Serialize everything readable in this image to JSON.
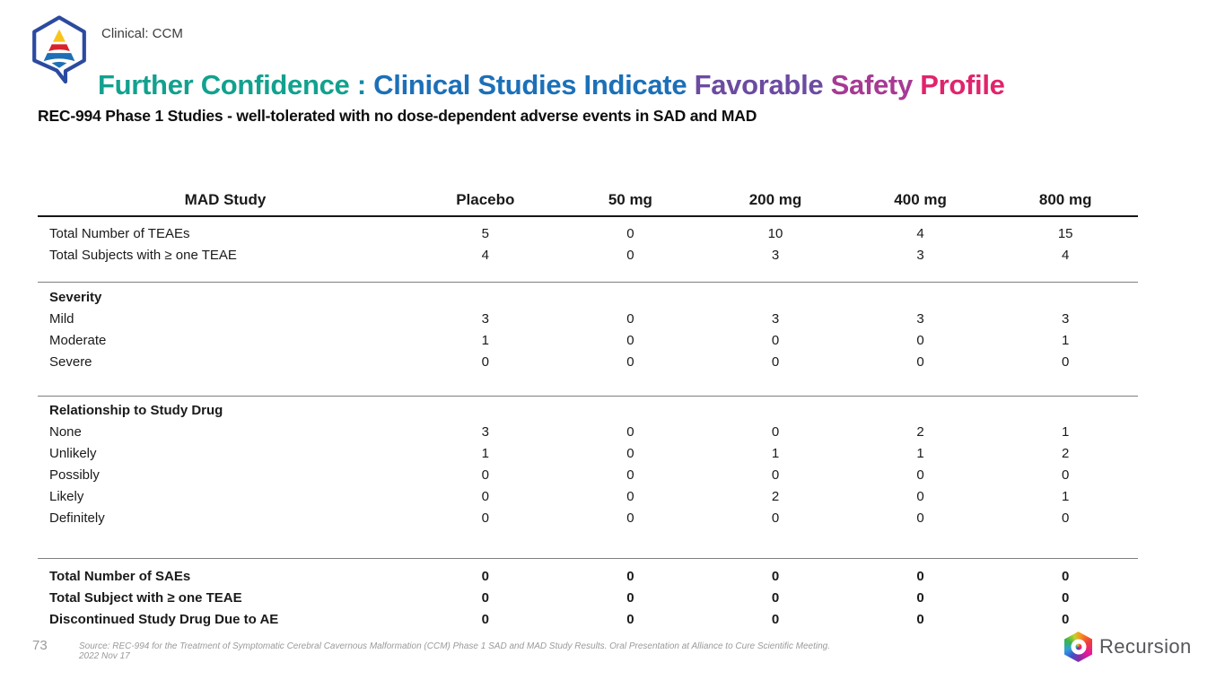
{
  "eyebrow": "Clinical: CCM",
  "title": {
    "segments": [
      {
        "text": "Further Confidence ",
        "color": "#12A18F"
      },
      {
        "text": ": ",
        "color": "#1688A8"
      },
      {
        "text": "Clinical Studies Indicate ",
        "color": "#1C70B8"
      },
      {
        "text": "Favorable ",
        "color": "#6C4BA1"
      },
      {
        "text": "Safety ",
        "color": "#A63A94"
      },
      {
        "text": "Profile",
        "color": "#E0246C"
      }
    ]
  },
  "subtitle": "REC-994 Phase 1 Studies - well-tolerated with no dose-dependent adverse events in SAD and MAD",
  "table": {
    "columns": [
      "MAD Study",
      "Placebo",
      "50 mg",
      "200 mg",
      "400 mg",
      "800 mg"
    ],
    "sections": [
      {
        "rows": [
          {
            "label": "Total Number of TEAEs",
            "bold": false,
            "values": [
              "5",
              "0",
              "10",
              "4",
              "15"
            ]
          },
          {
            "label": "Total Subjects with ≥ one TEAE",
            "bold": false,
            "values": [
              "4",
              "0",
              "3",
              "3",
              "4"
            ]
          }
        ]
      },
      {
        "header": "Severity",
        "rows": [
          {
            "label": "Mild",
            "bold": false,
            "values": [
              "3",
              "0",
              "3",
              "3",
              "3"
            ]
          },
          {
            "label": "Moderate",
            "bold": false,
            "values": [
              "1",
              "0",
              "0",
              "0",
              "1"
            ]
          },
          {
            "label": "Severe",
            "bold": false,
            "values": [
              "0",
              "0",
              "0",
              "0",
              "0"
            ]
          }
        ]
      },
      {
        "header": "Relationship to Study Drug",
        "rows": [
          {
            "label": "None",
            "bold": false,
            "values": [
              "3",
              "0",
              "0",
              "2",
              "1"
            ]
          },
          {
            "label": "Unlikely",
            "bold": false,
            "values": [
              "1",
              "0",
              "1",
              "1",
              "2"
            ]
          },
          {
            "label": "Possibly",
            "bold": false,
            "values": [
              "0",
              "0",
              "0",
              "0",
              "0"
            ]
          },
          {
            "label": "Likely",
            "bold": false,
            "values": [
              "0",
              "0",
              "2",
              "0",
              "1"
            ]
          },
          {
            "label": "Definitely",
            "bold": false,
            "values": [
              "0",
              "0",
              "0",
              "0",
              "0"
            ]
          }
        ]
      },
      {
        "rows": [
          {
            "label": "Total Number of SAEs",
            "bold": true,
            "values": [
              "0",
              "0",
              "0",
              "0",
              "0"
            ]
          },
          {
            "label": "Total Subject with ≥ one TEAE",
            "bold": true,
            "values": [
              "0",
              "0",
              "0",
              "0",
              "0"
            ]
          },
          {
            "label": "Discontinued Study Drug Due to AE",
            "bold": true,
            "values": [
              "0",
              "0",
              "0",
              "0",
              "0"
            ]
          }
        ]
      }
    ]
  },
  "footer": {
    "page_number": "73",
    "source": "Source: REC-994 for the Treatment of Symptomatic Cerebral Cavernous Malformation (CCM) Phase 1 SAD and MAD Study Results. Oral Presentation at Alliance to Cure Scientific Meeting. 2022 Nov 17",
    "brand": "Recursion"
  },
  "colors": {
    "title_teal": "#12A18F",
    "title_blue": "#1C70B8",
    "title_purple": "#6C4BA1",
    "title_magenta": "#A63A94",
    "title_pink": "#E0246C",
    "logo_outline_blue": "#2B4AA0",
    "logo_yellow": "#F7C41E",
    "logo_red": "#D8232A",
    "logo_blue": "#1F6FB5"
  }
}
